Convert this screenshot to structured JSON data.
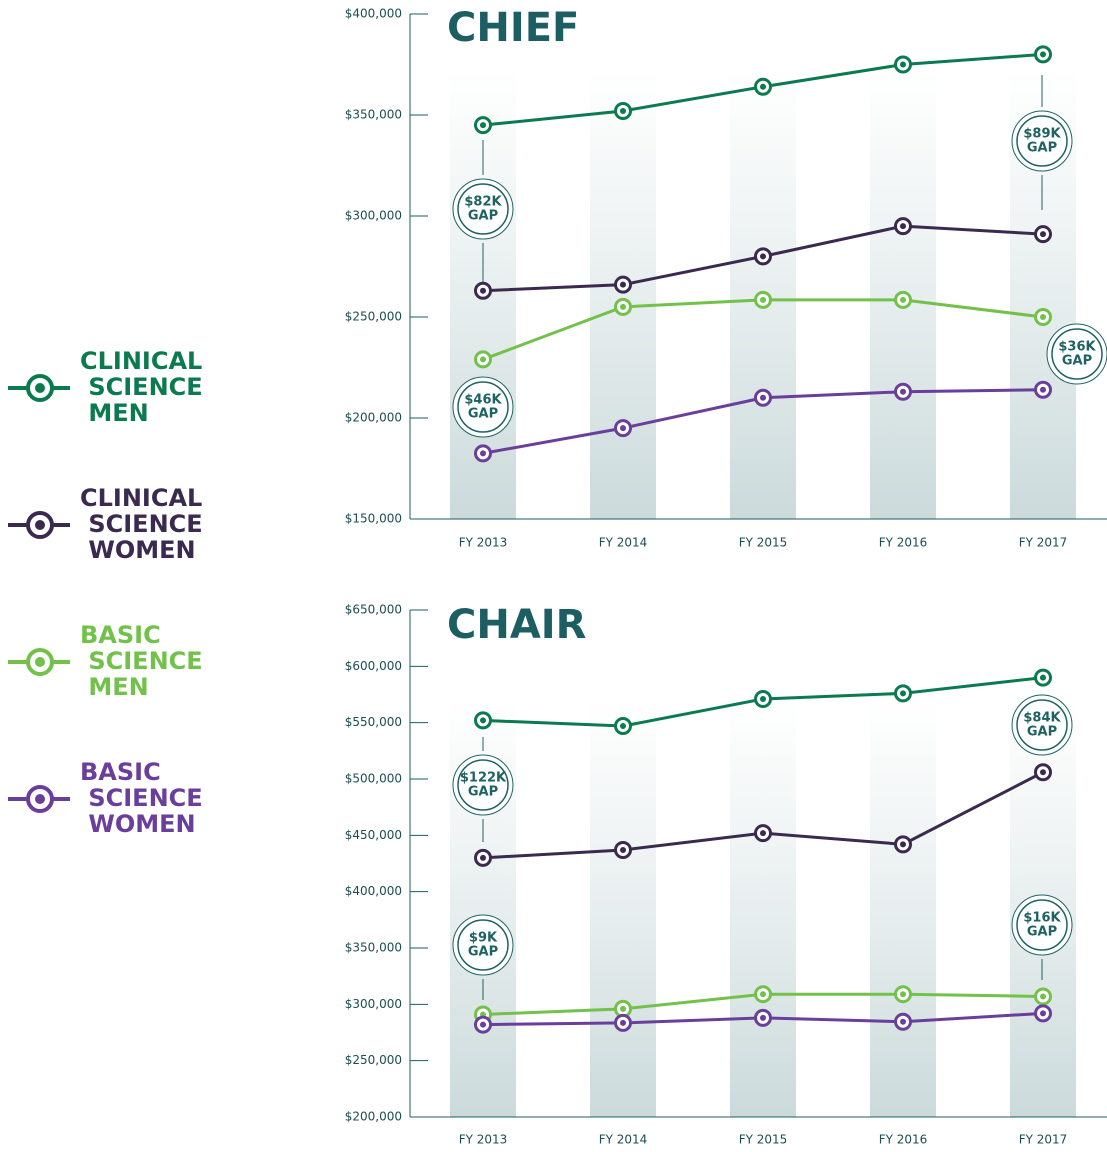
{
  "chart_data": [
    {
      "type": "line",
      "title": "CHIEF",
      "categories": [
        "FY 2013",
        "FY 2014",
        "FY 2015",
        "FY 2016",
        "FY 2017"
      ],
      "series": [
        {
          "name": "CLINICAL SCIENCE MEN",
          "color": "#0b7a4f",
          "values": [
            345000,
            352000,
            364000,
            375000,
            380000
          ]
        },
        {
          "name": "CLINICAL SCIENCE WOMEN",
          "color": "#3b2a4f",
          "values": [
            263000,
            266000,
            280000,
            295000,
            291000
          ]
        },
        {
          "name": "BASIC SCIENCE MEN",
          "color": "#72c14a",
          "values": [
            229000,
            255000,
            258500,
            258500,
            250000
          ]
        },
        {
          "name": "BASIC SCIENCE WOMEN",
          "color": "#6a3e9b",
          "values": [
            182500,
            195000,
            210000,
            213000,
            214000
          ]
        }
      ],
      "ylim": [
        150000,
        400000
      ],
      "yticks": [
        {
          "value": 150000,
          "label": "$150,000"
        },
        {
          "value": 200000,
          "label": "$200,000"
        },
        {
          "value": 250000,
          "label": "$250,000"
        },
        {
          "value": 300000,
          "label": "$300,000"
        },
        {
          "value": 350000,
          "label": "$350,000"
        },
        {
          "value": 400000,
          "label": "$400,000"
        }
      ],
      "annotations": [
        {
          "lines": [
            "$82K",
            "GAP"
          ]
        },
        {
          "lines": [
            "$46K",
            "GAP"
          ]
        },
        {
          "lines": [
            "$89K",
            "GAP"
          ]
        },
        {
          "lines": [
            "$36K",
            "GAP"
          ]
        }
      ]
    },
    {
      "type": "line",
      "title": "CHAIR",
      "categories": [
        "FY 2013",
        "FY 2014",
        "FY 2015",
        "FY 2016",
        "FY 2017"
      ],
      "series": [
        {
          "name": "CLINICAL SCIENCE MEN",
          "color": "#0b7a4f",
          "values": [
            552000,
            547000,
            571000,
            576000,
            590000
          ]
        },
        {
          "name": "CLINICAL SCIENCE WOMEN",
          "color": "#3b2a4f",
          "values": [
            430000,
            437000,
            452000,
            442000,
            506000
          ]
        },
        {
          "name": "BASIC SCIENCE MEN",
          "color": "#72c14a",
          "values": [
            291000,
            296000,
            309000,
            309000,
            307000
          ]
        },
        {
          "name": "BASIC SCIENCE WOMEN",
          "color": "#6a3e9b",
          "values": [
            282000,
            283500,
            288000,
            284500,
            292000
          ]
        }
      ],
      "ylim": [
        200000,
        650000
      ],
      "yticks": [
        {
          "value": 200000,
          "label": "$200,000"
        },
        {
          "value": 250000,
          "label": "$250,000"
        },
        {
          "value": 300000,
          "label": "$300,000"
        },
        {
          "value": 350000,
          "label": "$350,000"
        },
        {
          "value": 400000,
          "label": "$400,000"
        },
        {
          "value": 450000,
          "label": "$450,000"
        },
        {
          "value": 500000,
          "label": "$500,000"
        },
        {
          "value": 550000,
          "label": "$550,000"
        },
        {
          "value": 600000,
          "label": "$600,000"
        },
        {
          "value": 650000,
          "label": "$650,000"
        }
      ],
      "annotations": [
        {
          "lines": [
            "$122K",
            "GAP"
          ]
        },
        {
          "lines": [
            "$9K",
            "GAP"
          ]
        },
        {
          "lines": [
            "$84K",
            "GAP"
          ]
        },
        {
          "lines": [
            "$16K",
            "GAP"
          ]
        }
      ]
    }
  ]
}
